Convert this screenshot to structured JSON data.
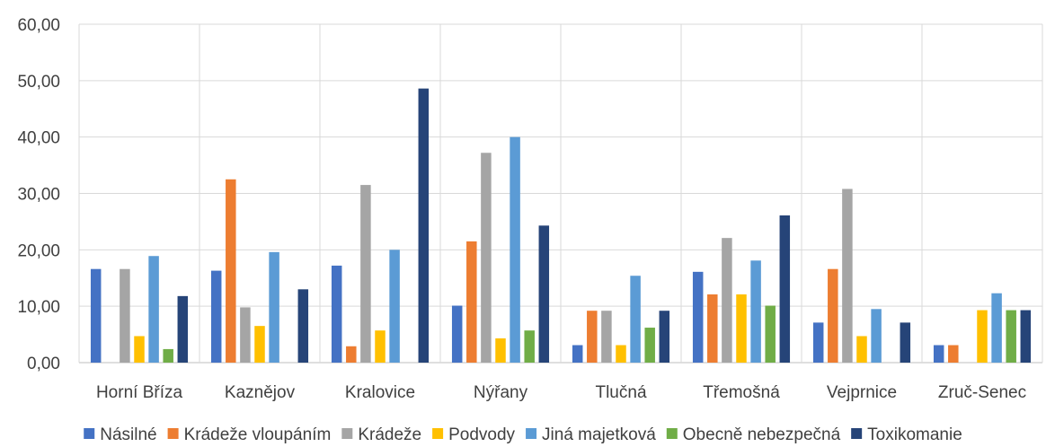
{
  "chart_data": {
    "type": "bar",
    "categories": [
      "Horní Bříza",
      "Kaznějov",
      "Kralovice",
      "Nýřany",
      "Tlučná",
      "Třemošná",
      "Vejprnice",
      "Zruč-Senec"
    ],
    "series": [
      {
        "name": "Násilné",
        "color": "#4472C4",
        "values": [
          16.6,
          16.3,
          17.2,
          10.1,
          3.1,
          16.1,
          7.1,
          3.1
        ]
      },
      {
        "name": "Krádeže vloupáním",
        "color": "#ED7D31",
        "values": [
          0,
          32.5,
          2.9,
          21.5,
          9.2,
          12.1,
          16.6,
          3.1
        ]
      },
      {
        "name": "Krádeže",
        "color": "#A5A5A5",
        "values": [
          16.6,
          9.8,
          31.5,
          37.2,
          9.2,
          22.1,
          30.8,
          0
        ]
      },
      {
        "name": "Podvody",
        "color": "#FFC000",
        "values": [
          4.7,
          6.5,
          5.7,
          4.3,
          3.1,
          12.1,
          4.7,
          9.3
        ]
      },
      {
        "name": "Jiná majetková",
        "color": "#5B9BD5",
        "values": [
          18.9,
          19.6,
          20.0,
          40.0,
          15.4,
          18.1,
          9.5,
          12.3
        ]
      },
      {
        "name": "Obecně nebezpečná",
        "color": "#70AD47",
        "values": [
          2.4,
          0,
          0,
          5.7,
          6.2,
          10.1,
          0,
          9.3
        ]
      },
      {
        "name": "Toxikomanie",
        "color": "#264478",
        "values": [
          11.8,
          13.0,
          48.6,
          24.3,
          9.2,
          26.1,
          7.1,
          9.3
        ]
      }
    ],
    "yticks": [
      "0,00",
      "10,00",
      "20,00",
      "30,00",
      "40,00",
      "50,00",
      "60,00"
    ],
    "ylim": [
      0,
      60
    ],
    "grid": true,
    "legend": "bottom"
  }
}
